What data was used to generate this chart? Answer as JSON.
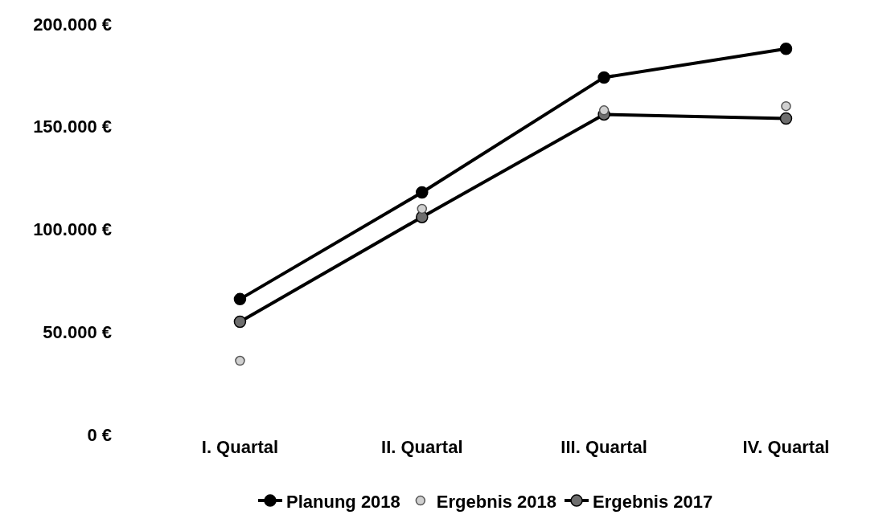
{
  "chart_data": {
    "type": "line",
    "categories": [
      "I. Quartal",
      "II. Quartal",
      "III. Quartal",
      "IV. Quartal"
    ],
    "series": [
      {
        "name": "Planung 2018",
        "color": "#000000",
        "values": [
          66000,
          118000,
          174000,
          188000
        ]
      },
      {
        "name": "Ergebnis 2018",
        "color": "#d0d0d0",
        "type": "scatter",
        "values": [
          36000,
          110000,
          158000,
          160000
        ]
      },
      {
        "name": "Ergebnis 2017",
        "color": "#6e6e6e",
        "values": [
          55000,
          106000,
          156000,
          154000
        ]
      }
    ],
    "ylim": [
      0,
      200000
    ],
    "yticks": [
      {
        "value": 0,
        "label": "0 €"
      },
      {
        "value": 50000,
        "label": "50.000 €"
      },
      {
        "value": 100000,
        "label": "100.000 €"
      },
      {
        "value": 150000,
        "label": "150.000 €"
      },
      {
        "value": 200000,
        "label": "200.000 €"
      }
    ],
    "legend": "bottom",
    "marker": "circle",
    "line_style": "solid"
  }
}
